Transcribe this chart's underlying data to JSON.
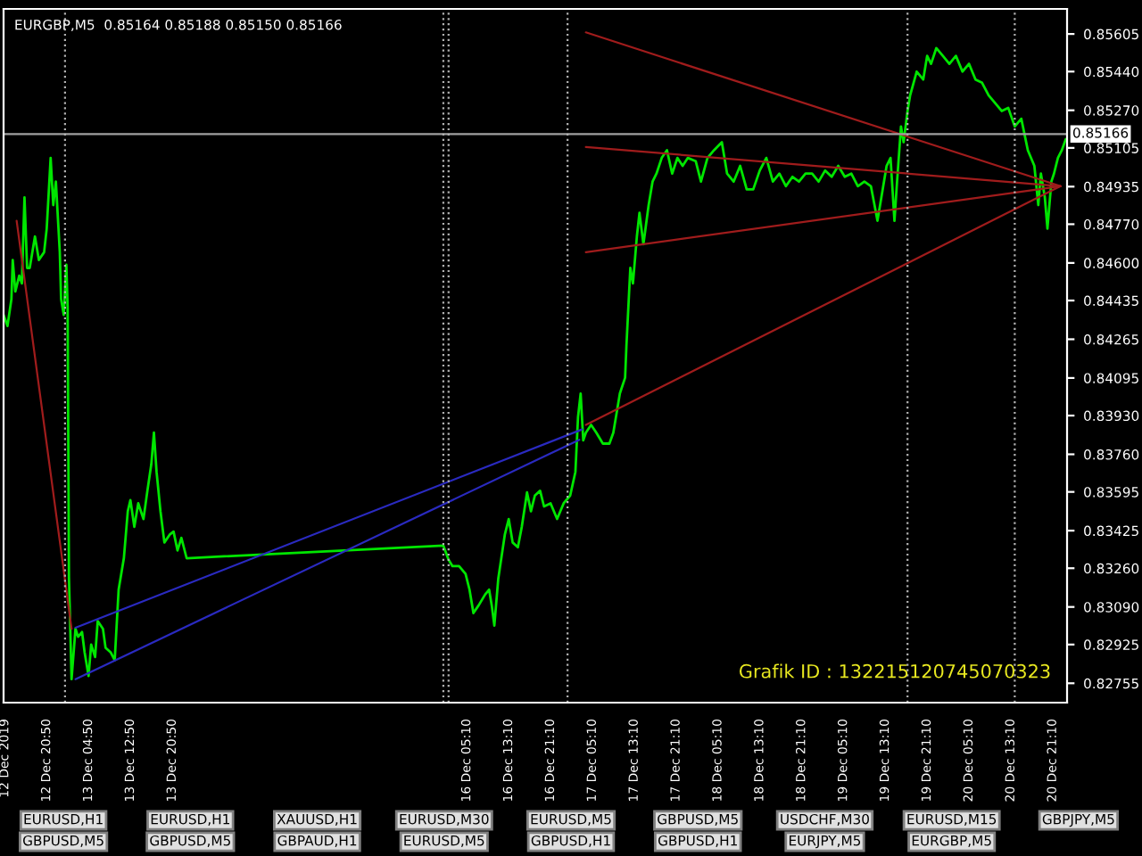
{
  "chart_data": {
    "type": "line",
    "title": "EURGBP,M5  0.85164 0.85188 0.85150 0.85166",
    "xlim": [
      "2019-12-12T12:35",
      "2019-12-20T23:55"
    ],
    "ylim": [
      0.8267,
      0.85715
    ],
    "xticks": [
      {
        "value": "2019-12-12T12:50",
        "label": "12 Dec 2019"
      },
      {
        "value": "2019-12-12T20:50",
        "label": "12 Dec 20:50"
      },
      {
        "value": "2019-12-13T04:50",
        "label": "13 Dec 04:50"
      },
      {
        "value": "2019-12-13T12:50",
        "label": "13 Dec 12:50"
      },
      {
        "value": "2019-12-13T20:50",
        "label": "13 Dec 20:50"
      },
      {
        "value": "2019-12-16T05:10",
        "label": "16 Dec 05:10"
      },
      {
        "value": "2019-12-16T13:10",
        "label": "16 Dec 13:10"
      },
      {
        "value": "2019-12-16T21:10",
        "label": "16 Dec 21:10"
      },
      {
        "value": "2019-12-17T05:10",
        "label": "17 Dec 05:10"
      },
      {
        "value": "2019-12-17T13:10",
        "label": "17 Dec 13:10"
      },
      {
        "value": "2019-12-17T21:10",
        "label": "17 Dec 21:10"
      },
      {
        "value": "2019-12-18T05:10",
        "label": "18 Dec 05:10"
      },
      {
        "value": "2019-12-18T13:10",
        "label": "18 Dec 13:10"
      },
      {
        "value": "2019-12-18T21:10",
        "label": "18 Dec 21:10"
      },
      {
        "value": "2019-12-19T05:10",
        "label": "19 Dec 05:10"
      },
      {
        "value": "2019-12-19T13:10",
        "label": "19 Dec 13:10"
      },
      {
        "value": "2019-12-19T21:10",
        "label": "19 Dec 21:10"
      },
      {
        "value": "2019-12-20T05:10",
        "label": "20 Dec 05:10"
      },
      {
        "value": "2019-12-20T13:10",
        "label": "20 Dec 13:10"
      },
      {
        "value": "2019-12-20T21:10",
        "label": "20 Dec 21:10"
      }
    ],
    "yticks": [
      0.85605,
      {
        "value": 0.8544,
        "label": "0.85440"
      },
      {
        "value": 0.8527,
        "label": "0.85270"
      },
      0.85105,
      0.84935,
      {
        "value": 0.8477,
        "label": "0.84770"
      },
      {
        "value": 0.846,
        "label": "0.84600"
      },
      0.84435,
      0.84265,
      0.84095,
      {
        "value": 0.8393,
        "label": "0.83930"
      },
      {
        "value": 0.8376,
        "label": "0.83760"
      },
      0.83595,
      0.83425,
      {
        "value": 0.8326,
        "label": "0.83260"
      },
      {
        "value": 0.8309,
        "label": "0.83090"
      },
      0.82925,
      0.82755
    ],
    "series": [
      {
        "color": "#00e600",
        "x": [
          "2019-12-12T12:35",
          "2019-12-12T13:20",
          "2019-12-12T14:05",
          "2019-12-12T14:20",
          "2019-12-12T14:50",
          "2019-12-12T15:35",
          "2019-12-12T16:05",
          "2019-12-12T16:35",
          "2019-12-12T17:05",
          "2019-12-12T17:35",
          "2019-12-12T18:35",
          "2019-12-12T19:20",
          "2019-12-12T20:20",
          "2019-12-12T20:50",
          "2019-12-12T21:35",
          "2019-12-12T22:05",
          "2019-12-12T22:35",
          "2019-12-12T23:20",
          "2019-12-12T23:35",
          "2019-12-13T00:05",
          "2019-12-13T00:35",
          "2019-12-13T00:50",
          "2019-12-13T01:05",
          "2019-12-13T01:35",
          "2019-12-13T02:20",
          "2019-12-13T02:50",
          "2019-12-13T03:35",
          "2019-12-13T04:05",
          "2019-12-13T04:50",
          "2019-12-13T05:20",
          "2019-12-13T06:05",
          "2019-12-13T06:35",
          "2019-12-13T07:35",
          "2019-12-13T08:05",
          "2019-12-13T09:05",
          "2019-12-13T09:50",
          "2019-12-13T10:35",
          "2019-12-13T11:35",
          "2019-12-13T12:20",
          "2019-12-13T12:50",
          "2019-12-13T13:35",
          "2019-12-13T14:20",
          "2019-12-13T15:20",
          "2019-12-13T16:05",
          "2019-12-13T16:50",
          "2019-12-13T17:20",
          "2019-12-13T17:50",
          "2019-12-13T18:35",
          "2019-12-13T19:20",
          "2019-12-13T20:20",
          "2019-12-13T21:05",
          "2019-12-13T21:50",
          "2019-12-13T22:35",
          "2019-12-13T23:35",
          "2019-12-16T00:40",
          "2019-12-16T01:40",
          "2019-12-16T02:25",
          "2019-12-16T03:40",
          "2019-12-16T04:55",
          "2019-12-16T05:40",
          "2019-12-16T06:25",
          "2019-12-16T07:25",
          "2019-12-16T08:40",
          "2019-12-16T09:25",
          "2019-12-16T09:55",
          "2019-12-16T10:25",
          "2019-12-16T11:10",
          "2019-12-16T12:25",
          "2019-12-16T13:10",
          "2019-12-16T13:55",
          "2019-12-16T14:55",
          "2019-12-16T15:40",
          "2019-12-16T16:40",
          "2019-12-16T17:25",
          "2019-12-16T18:10",
          "2019-12-16T19:10",
          "2019-12-16T19:55",
          "2019-12-16T21:10",
          "2019-12-16T22:25",
          "2019-12-16T23:40",
          "2019-12-17T00:55",
          "2019-12-17T01:55",
          "2019-12-17T02:25",
          "2019-12-17T02:55",
          "2019-12-17T03:25",
          "2019-12-17T03:55",
          "2019-12-17T04:55",
          "2019-12-17T05:55",
          "2019-12-17T07:10",
          "2019-12-17T08:25",
          "2019-12-17T09:10",
          "2019-12-17T09:55",
          "2019-12-17T10:25",
          "2019-12-17T11:25",
          "2019-12-17T11:40",
          "2019-12-17T12:25",
          "2019-12-17T12:55",
          "2019-12-17T13:40",
          "2019-12-17T14:10",
          "2019-12-17T14:55",
          "2019-12-17T15:55",
          "2019-12-17T16:40",
          "2019-12-17T17:25",
          "2019-12-17T18:25",
          "2019-12-17T19:25",
          "2019-12-17T20:25",
          "2019-12-17T21:25",
          "2019-12-17T22:25",
          "2019-12-17T23:25",
          "2019-12-18T00:55",
          "2019-12-18T01:55",
          "2019-12-18T03:10",
          "2019-12-18T04:25",
          "2019-12-18T05:55",
          "2019-12-18T06:55",
          "2019-12-18T08:10",
          "2019-12-18T09:25",
          "2019-12-18T10:40",
          "2019-12-18T11:55",
          "2019-12-18T13:10",
          "2019-12-18T14:25",
          "2019-12-18T15:40",
          "2019-12-18T16:55",
          "2019-12-18T18:10",
          "2019-12-18T19:25",
          "2019-12-18T20:40",
          "2019-12-18T21:55",
          "2019-12-18T23:10",
          "2019-12-19T00:25",
          "2019-12-19T01:40",
          "2019-12-19T02:55",
          "2019-12-19T04:10",
          "2019-12-19T05:25",
          "2019-12-19T06:40",
          "2019-12-19T07:55",
          "2019-12-19T09:10",
          "2019-12-19T10:25",
          "2019-12-19T11:40",
          "2019-12-19T12:25",
          "2019-12-19T13:25",
          "2019-12-19T14:10",
          "2019-12-19T14:55",
          "2019-12-19T15:25",
          "2019-12-19T16:10",
          "2019-12-19T16:40",
          "2019-12-19T17:25",
          "2019-12-19T17:55",
          "2019-12-19T19:10",
          "2019-12-19T20:25",
          "2019-12-19T21:10",
          "2019-12-19T21:55",
          "2019-12-19T22:55",
          "2019-12-20T00:10",
          "2019-12-20T01:25",
          "2019-12-20T02:40",
          "2019-12-20T03:55",
          "2019-12-20T05:10",
          "2019-12-20T06:25",
          "2019-12-20T07:40",
          "2019-12-20T08:55",
          "2019-12-20T10:10",
          "2019-12-20T11:25",
          "2019-12-20T12:40",
          "2019-12-20T13:55",
          "2019-12-20T15:10",
          "2019-12-20T16:25",
          "2019-12-20T17:40",
          "2019-12-20T18:25",
          "2019-12-20T18:55",
          "2019-12-20T19:40",
          "2019-12-20T20:10",
          "2019-12-20T20:55",
          "2019-12-20T21:25",
          "2019-12-20T22:10",
          "2019-12-20T22:55",
          "2019-12-20T23:40"
        ],
        "values": [
          0.84372,
          0.84323,
          0.84441,
          0.84613,
          0.84475,
          0.84544,
          0.8451,
          0.84888,
          0.84578,
          0.84578,
          0.84716,
          0.84613,
          0.84647,
          0.84751,
          0.85061,
          0.84854,
          0.84957,
          0.84647,
          0.84441,
          0.84372,
          0.84592,
          0.84406,
          0.83221,
          0.82773,
          0.82994,
          0.82959,
          0.8298,
          0.8289,
          0.82787,
          0.82925,
          0.8287,
          0.83028,
          0.82994,
          0.82911,
          0.8289,
          0.82856,
          0.83166,
          0.83304,
          0.8351,
          0.83559,
          0.83442,
          0.83545,
          0.83476,
          0.836,
          0.83717,
          0.83855,
          0.83683,
          0.8351,
          0.83373,
          0.83407,
          0.83421,
          0.83338,
          0.83393,
          0.83304,
          0.83359,
          0.83297,
          0.83269,
          0.83269,
          0.83235,
          0.83166,
          0.83063,
          0.83097,
          0.83145,
          0.83166,
          0.83097,
          0.83008,
          0.83214,
          0.83407,
          0.83476,
          0.83373,
          0.83352,
          0.83442,
          0.83593,
          0.8351,
          0.83579,
          0.836,
          0.83531,
          0.83545,
          0.83476,
          0.83545,
          0.83579,
          0.83683,
          0.83924,
          0.84027,
          0.83821,
          0.83855,
          0.83889,
          0.83855,
          0.83807,
          0.83807,
          0.83855,
          0.83958,
          0.84027,
          0.84096,
          0.84234,
          0.84578,
          0.8451,
          0.84716,
          0.8482,
          0.84682,
          0.84854,
          0.84957,
          0.84992,
          0.85061,
          0.85095,
          0.84992,
          0.85061,
          0.85026,
          0.85061,
          0.85047,
          0.84957,
          0.85061,
          0.85095,
          0.8513,
          0.84992,
          0.84957,
          0.85026,
          0.84923,
          0.84923,
          0.85006,
          0.85061,
          0.84957,
          0.84992,
          0.84937,
          0.84978,
          0.84957,
          0.84992,
          0.84992,
          0.84957,
          0.85006,
          0.84978,
          0.85026,
          0.84978,
          0.84992,
          0.84937,
          0.84957,
          0.84937,
          0.84785,
          0.84888,
          0.85026,
          0.85061,
          0.84785,
          0.84957,
          0.85199,
          0.8513,
          0.85267,
          0.85336,
          0.8544,
          0.85405,
          0.85509,
          0.85474,
          0.85543,
          0.85509,
          0.85474,
          0.85509,
          0.8544,
          0.85474,
          0.85405,
          0.85391,
          0.85336,
          0.85302,
          0.85267,
          0.85281,
          0.85199,
          0.85233,
          0.85095,
          0.85026,
          0.84854,
          0.84992,
          0.84888,
          0.84751,
          0.84957,
          0.84992,
          0.85061,
          0.85095,
          0.85143
        ]
      },
      {
        "type": "line",
        "color": "#a01c1c",
        "x": [
          "2019-12-17T03:55",
          "2019-12-20T22:40"
        ],
        "values": [
          0.85612,
          0.84937
        ]
      },
      {
        "type": "line",
        "color": "#a01c1c",
        "x": [
          "2019-12-17T03:55",
          "2019-12-20T22:40"
        ],
        "values": [
          0.85109,
          0.84937
        ]
      },
      {
        "type": "line",
        "color": "#a01c1c",
        "x": [
          "2019-12-17T03:55",
          "2019-12-20T22:40"
        ],
        "values": [
          0.84647,
          0.84937
        ]
      },
      {
        "type": "line",
        "color": "#a01c1c",
        "x": [
          "2019-12-17T03:55",
          "2019-12-20T22:40"
        ],
        "values": [
          0.83889,
          0.84937
        ]
      },
      {
        "type": "line",
        "color": "#a01c1c",
        "x": [
          "2019-12-12T15:05",
          "2019-12-13T01:35"
        ],
        "values": [
          0.84785,
          0.82994
        ]
      },
      {
        "type": "line",
        "color": "#2a2ac0",
        "x": [
          "2019-12-13T02:20",
          "2019-12-17T03:10"
        ],
        "values": [
          0.82999,
          0.83869
        ]
      },
      {
        "type": "line",
        "color": "#2a2ac0",
        "x": [
          "2019-12-13T02:20",
          "2019-12-17T02:40"
        ],
        "values": [
          0.82773,
          0.83824
        ]
      }
    ],
    "ref_lines": [
      {
        "axis": "y",
        "value": 0.85166,
        "label": "0.85166",
        "color": "#a0a0a0",
        "line_style": "solid"
      },
      {
        "axis": "x",
        "value": "2019-12-13T00:20",
        "color": "#b0b0b0",
        "line_style": "dotted"
      },
      {
        "axis": "x",
        "value": "2019-12-16T00:40",
        "color": "#b0b0b0",
        "line_style": "dotted"
      },
      {
        "axis": "x",
        "value": "2019-12-16T01:40",
        "color": "#b0b0b0",
        "line_style": "dotted"
      },
      {
        "axis": "x",
        "value": "2019-12-17T00:25",
        "color": "#b0b0b0",
        "line_style": "dotted"
      },
      {
        "axis": "x",
        "value": "2019-12-19T17:25",
        "color": "#b0b0b0",
        "line_style": "dotted"
      },
      {
        "axis": "x",
        "value": "2019-12-20T13:55",
        "color": "#b0b0b0",
        "line_style": "dotted"
      }
    ],
    "annotations": [
      "Grafik ID : 132215120745070323",
      "EURUSD,H1",
      "EURUSD,H1",
      "XAUUSD,H1",
      "EURUSD,M30",
      "EURUSD,M5",
      "GBPUSD,M5",
      "USDCHF,M30",
      "EURUSD,M15",
      "GBPJPY,M5",
      "GBPUSD,M5",
      "GBPUSD,M5",
      "GBPAUD,H1",
      "EURUSD,M5",
      "GBPUSD,H1",
      "GBPUSD,H1",
      "EURJPY,M5",
      "EURGBP,M5"
    ]
  }
}
